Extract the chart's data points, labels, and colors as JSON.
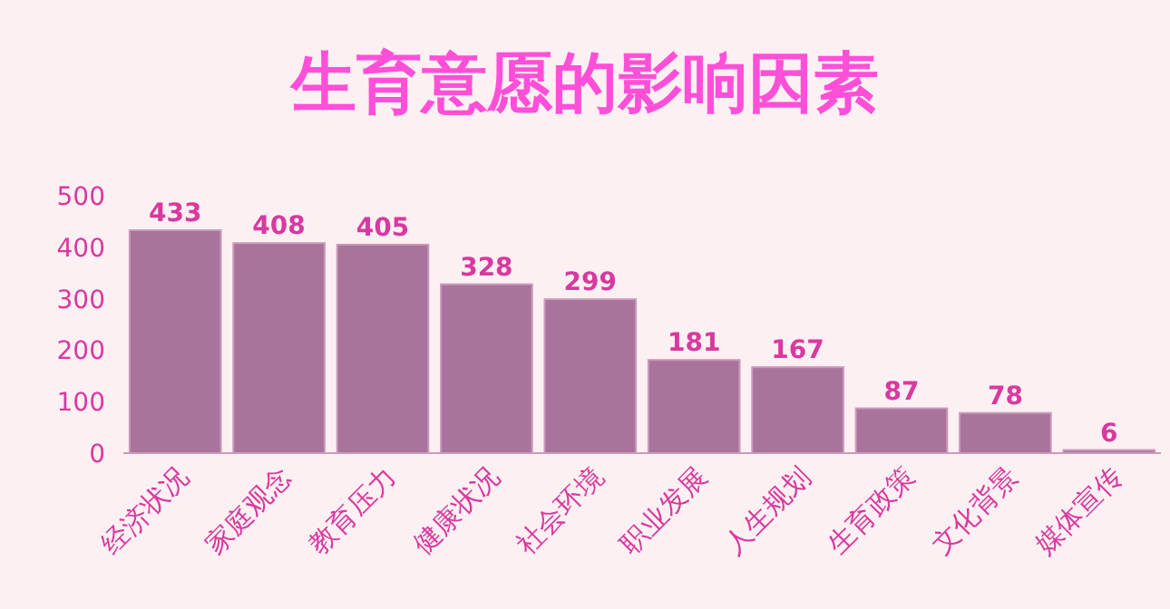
{
  "chart_data": {
    "type": "bar",
    "title": "生育意愿的影响因素",
    "categories": [
      "经济状况",
      "家庭观念",
      "教育压力",
      "健康状况",
      "社会环境",
      "职业发展",
      "人生规划",
      "生育政策",
      "文化背景",
      "媒体宣传"
    ],
    "values": [
      433,
      408,
      405,
      328,
      299,
      181,
      167,
      87,
      78,
      6
    ],
    "color": "#a9739b",
    "ylim": [
      0,
      500
    ],
    "yticks": [
      0,
      100,
      200,
      300,
      400,
      500
    ],
    "data_labels": true
  }
}
